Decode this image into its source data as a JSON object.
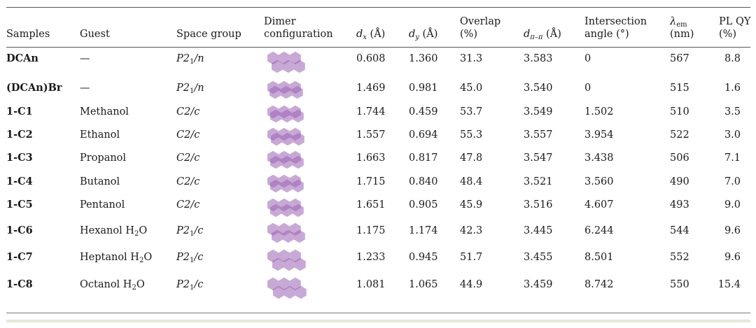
{
  "headers": {
    "samples": "Samples",
    "guest": "Guest",
    "space_group": "Space group",
    "dimer_line1": "Dimer",
    "dimer_line2": "configuration",
    "dx_var": "d",
    "dx_sub": "x",
    "dx_unit": " (Å)",
    "dy_var": "d",
    "dy_sub": "y",
    "dy_unit": " (Å)",
    "overlap_line1": "Overlap",
    "overlap_line2": "(%)",
    "dpp_var": "d",
    "dpp_sub": "π–π",
    "dpp_unit": " (Å)",
    "angle_line1": "Intersection",
    "angle_line2": "angle (°)",
    "lem_var": "λ",
    "lem_sub": "em",
    "lem_line2": "(nm)",
    "plqy_line1": "PL QY",
    "plqy_line2": "(%)"
  },
  "rows": [
    {
      "sample": "DCAn",
      "guest": "—",
      "guest_sub": "",
      "guest_tail": "",
      "sg_a": "P2",
      "sg_sub": "1",
      "sg_b": "/n",
      "dx": "0.608",
      "dy": "1.360",
      "overlap": "31.3",
      "dpp": "3.583",
      "angle": "0",
      "lem": "567",
      "plqy": "8.8"
    },
    {
      "sample": "(DCAn)Br",
      "guest": "—",
      "guest_sub": "",
      "guest_tail": "",
      "sg_a": "P2",
      "sg_sub": "1",
      "sg_b": "/n",
      "dx": "1.469",
      "dy": "0.981",
      "overlap": "45.0",
      "dpp": "3.540",
      "angle": "0",
      "lem": "515",
      "plqy": "1.6"
    },
    {
      "sample": "1-C1",
      "guest": "Methanol",
      "guest_sub": "",
      "guest_tail": "",
      "sg_a": "C2/c",
      "sg_sub": "",
      "sg_b": "",
      "dx": "1.744",
      "dy": "0.459",
      "overlap": "53.7",
      "dpp": "3.549",
      "angle": "1.502",
      "lem": "510",
      "plqy": "3.5"
    },
    {
      "sample": "1-C2",
      "guest": "Ethanol",
      "guest_sub": "",
      "guest_tail": "",
      "sg_a": "C2/c",
      "sg_sub": "",
      "sg_b": "",
      "dx": "1.557",
      "dy": "0.694",
      "overlap": "55.3",
      "dpp": "3.557",
      "angle": "3.954",
      "lem": "522",
      "plqy": "3.0"
    },
    {
      "sample": "1-C3",
      "guest": "Propanol",
      "guest_sub": "",
      "guest_tail": "",
      "sg_a": "C2/c",
      "sg_sub": "",
      "sg_b": "",
      "dx": "1.663",
      "dy": "0.817",
      "overlap": "47.8",
      "dpp": "3.547",
      "angle": "3.438",
      "lem": "506",
      "plqy": "7.1"
    },
    {
      "sample": "1-C4",
      "guest": "Butanol",
      "guest_sub": "",
      "guest_tail": "",
      "sg_a": "C2/c",
      "sg_sub": "",
      "sg_b": "",
      "dx": "1.715",
      "dy": "0.840",
      "overlap": "48.4",
      "dpp": "3.521",
      "angle": "3.560",
      "lem": "490",
      "plqy": "7.0"
    },
    {
      "sample": "1-C5",
      "guest": "Pentanol",
      "guest_sub": "",
      "guest_tail": "",
      "sg_a": "C2/c",
      "sg_sub": "",
      "sg_b": "",
      "dx": "1.651",
      "dy": "0.905",
      "overlap": "45.9",
      "dpp": "3.516",
      "angle": "4.607",
      "lem": "493",
      "plqy": "9.0"
    },
    {
      "sample": "1-C6",
      "guest": "Hexanol H",
      "guest_sub": "2",
      "guest_tail": "O",
      "sg_a": "P2",
      "sg_sub": "1",
      "sg_b": "/c",
      "dx": "1.175",
      "dy": "1.174",
      "overlap": "42.3",
      "dpp": "3.445",
      "angle": "6.244",
      "lem": "544",
      "plqy": "9.6"
    },
    {
      "sample": "1-C7",
      "guest": "Heptanol H",
      "guest_sub": "2",
      "guest_tail": "O",
      "sg_a": "P2",
      "sg_sub": "1",
      "sg_b": "/c",
      "dx": "1.233",
      "dy": "0.945",
      "overlap": "51.7",
      "dpp": "3.455",
      "angle": "8.501",
      "lem": "552",
      "plqy": "9.6"
    },
    {
      "sample": "1-C8",
      "guest": "Octanol H",
      "guest_sub": "2",
      "guest_tail": "O",
      "sg_a": "P2",
      "sg_sub": "1",
      "sg_b": "/c",
      "dx": "1.081",
      "dy": "1.065",
      "overlap": "44.9",
      "dpp": "3.459",
      "angle": "8.742",
      "lem": "550",
      "plqy": "15.4"
    }
  ],
  "dimer_colors": {
    "light": "#c9a6d6",
    "dark": "#9b62b5"
  }
}
